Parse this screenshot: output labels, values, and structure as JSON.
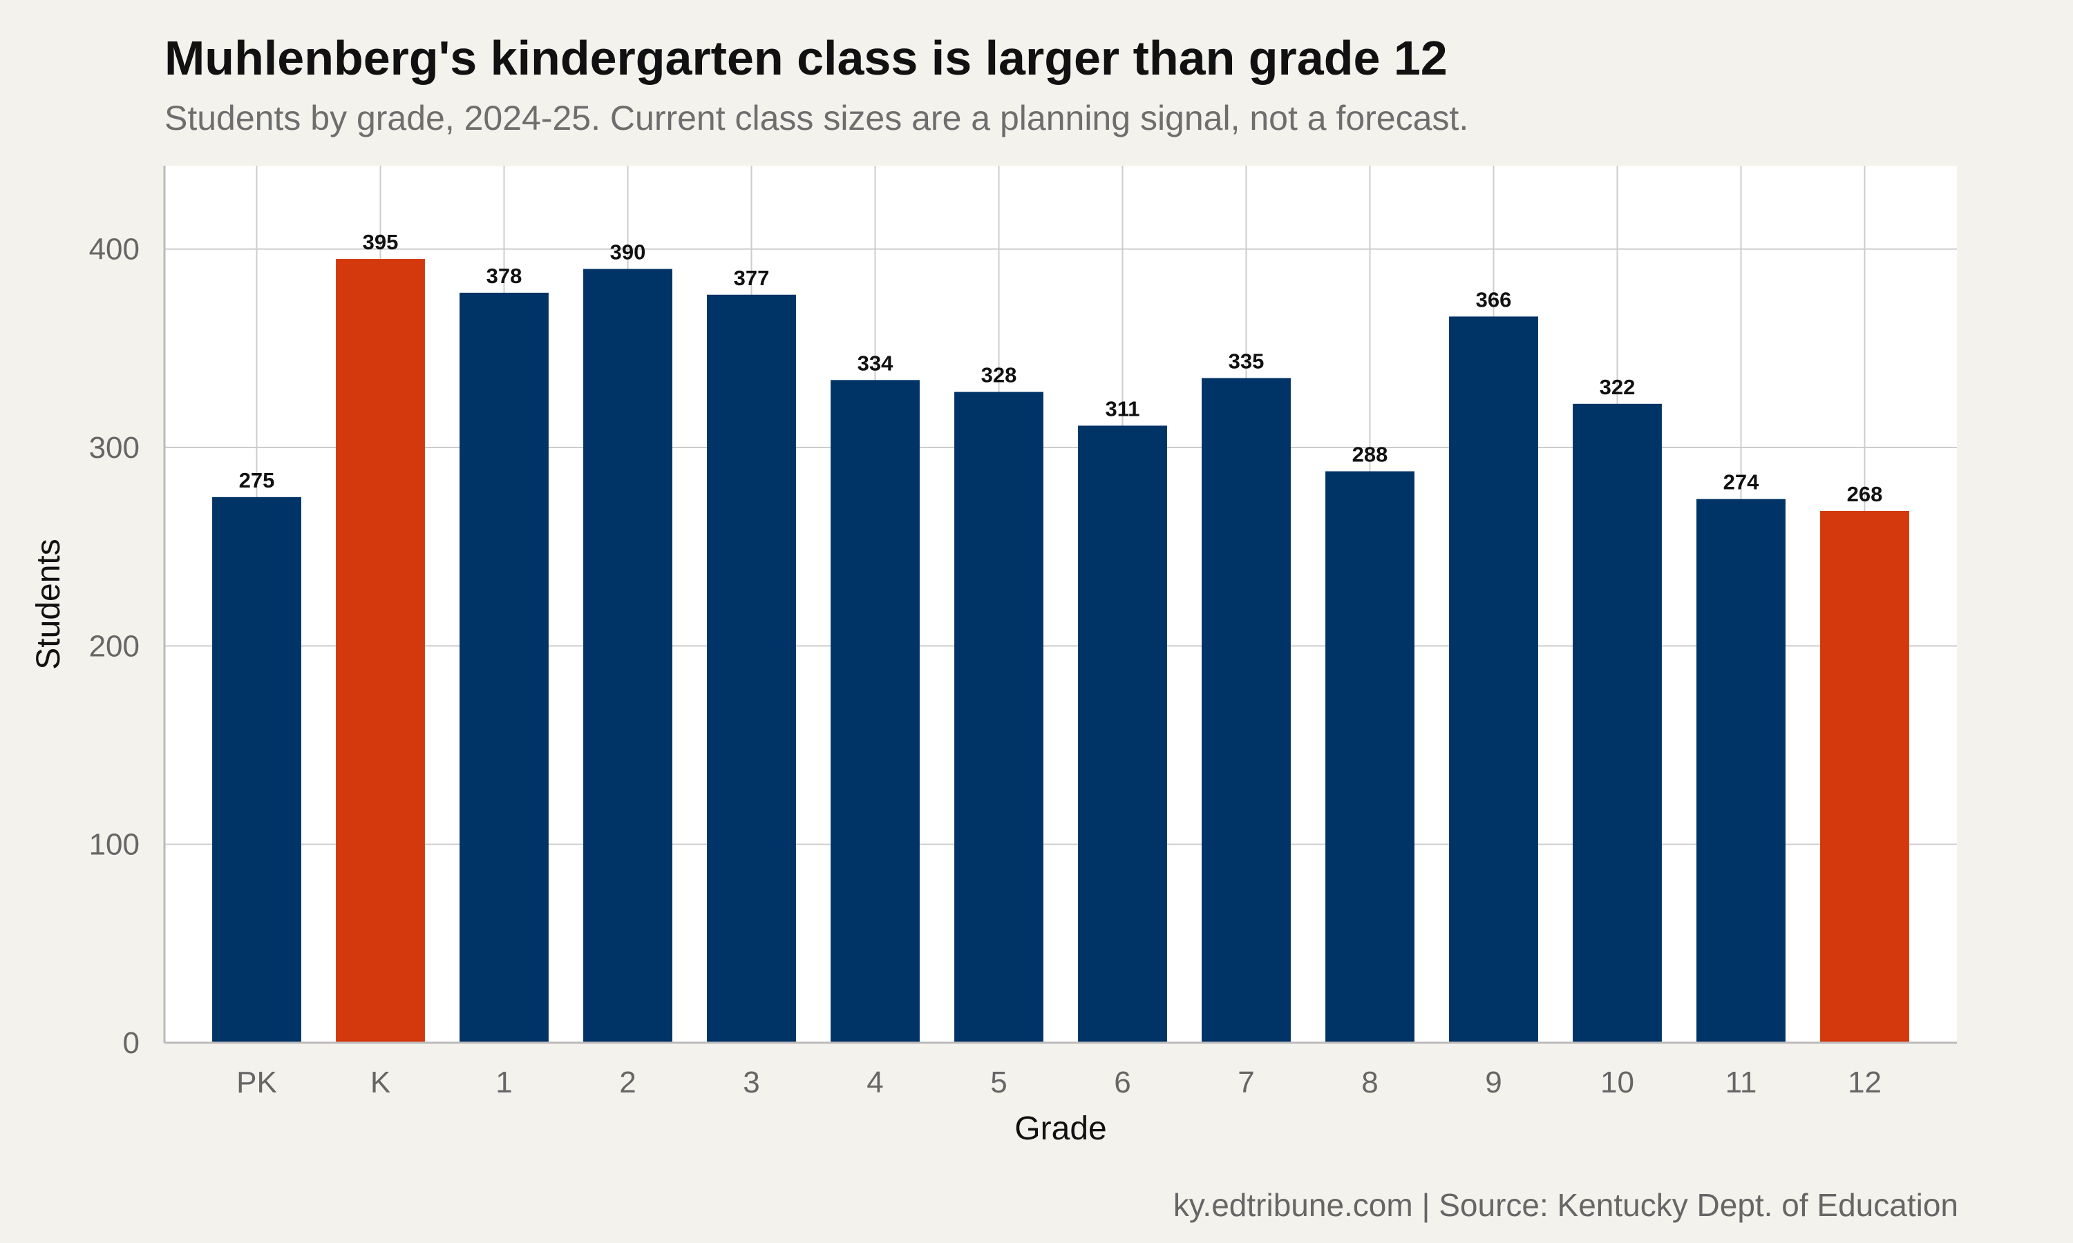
{
  "chart_data": {
    "type": "bar",
    "title": "Muhlenberg's kindergarten class is larger than grade 12",
    "subtitle": "Students by grade, 2024-25. Current class sizes are a planning signal, not a forecast.",
    "caption": "ky.edtribune.com | Source: Kentucky Dept. of Education",
    "xlabel": "Grade",
    "ylabel": "Students",
    "categories": [
      "PK",
      "K",
      "1",
      "2",
      "3",
      "4",
      "5",
      "6",
      "7",
      "8",
      "9",
      "10",
      "11",
      "12"
    ],
    "values": [
      275,
      395,
      378,
      390,
      377,
      334,
      328,
      311,
      335,
      288,
      366,
      322,
      274,
      268
    ],
    "highlight": [
      "K",
      "12"
    ],
    "ylim": [
      0,
      442
    ],
    "yticks": [
      0,
      100,
      200,
      300,
      400
    ],
    "grid": true,
    "legend": "none",
    "colors": {
      "bar": "#003366",
      "highlight": "#d4380d",
      "panel": "#ffffff",
      "background": "#f4f2ed",
      "grid": "#cccccc"
    }
  }
}
